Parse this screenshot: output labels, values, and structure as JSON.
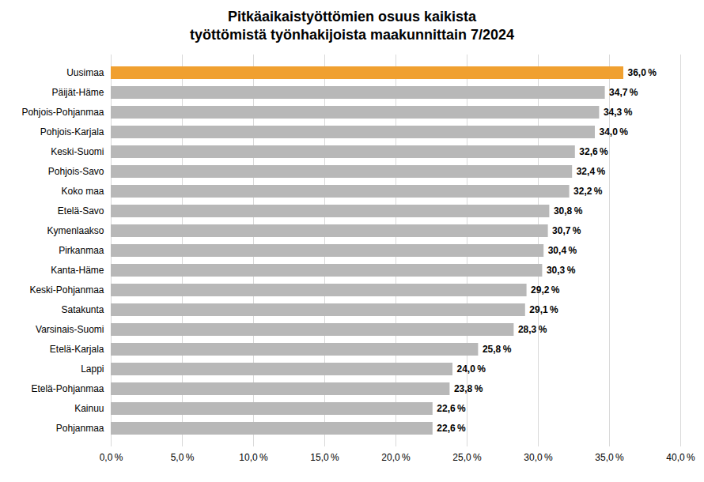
{
  "chart_data": {
    "type": "bar",
    "orientation": "horizontal",
    "title": "Pitkäaikaistyöttömien osuus kaikista\ntyöttömistä työnhakijoista maakunnittain 7/2024",
    "categories": [
      "Pohjanmaa",
      "Kainuu",
      "Etelä-Pohjanmaa",
      "Lappi",
      "Etelä-Karjala",
      "Varsinais-Suomi",
      "Satakunta",
      "Keski-Pohjanmaa",
      "Kanta-Häme",
      "Pirkanmaa",
      "Kymenlaakso",
      "Etelä-Savo",
      "Koko maa",
      "Pohjois-Savo",
      "Keski-Suomi",
      "Pohjois-Karjala",
      "Pohjois-Pohjanmaa",
      "Päijät-Häme",
      "Uusimaa"
    ],
    "values": [
      22.6,
      22.6,
      23.8,
      24.0,
      25.8,
      28.3,
      29.1,
      29.2,
      30.3,
      30.4,
      30.7,
      30.8,
      32.2,
      32.4,
      32.6,
      34.0,
      34.3,
      34.7,
      36.0
    ],
    "value_labels": [
      "22,6 %",
      "22,6 %",
      "23,8 %",
      "24,0 %",
      "25,8 %",
      "28,3 %",
      "29,1 %",
      "29,2 %",
      "30,3 %",
      "30,4 %",
      "30,7 %",
      "30,8 %",
      "32,2 %",
      "32,4 %",
      "32,6 %",
      "34,0 %",
      "34,3 %",
      "34,7 %",
      "36,0 %"
    ],
    "colors": [
      "#b8b8b8",
      "#b8b8b8",
      "#b8b8b8",
      "#b8b8b8",
      "#b8b8b8",
      "#b8b8b8",
      "#b8b8b8",
      "#b8b8b8",
      "#b8b8b8",
      "#b8b8b8",
      "#b8b8b8",
      "#b8b8b8",
      "#b8b8b8",
      "#b8b8b8",
      "#b8b8b8",
      "#b8b8b8",
      "#b8b8b8",
      "#b8b8b8",
      "#f0a030"
    ],
    "xlim": [
      0,
      40
    ],
    "xticks": [
      {
        "value": 0,
        "label": "0,0 %"
      },
      {
        "value": 5,
        "label": "5,0 %"
      },
      {
        "value": 10,
        "label": "10,0 %"
      },
      {
        "value": 15,
        "label": "15,0 %"
      },
      {
        "value": 20,
        "label": "20,0 %"
      },
      {
        "value": 25,
        "label": "25,0 %"
      },
      {
        "value": 30,
        "label": "30,0 %"
      },
      {
        "value": 35,
        "label": "35,0 %"
      },
      {
        "value": 40,
        "label": "40,0 %"
      }
    ],
    "grid": true,
    "data_labels": true
  }
}
